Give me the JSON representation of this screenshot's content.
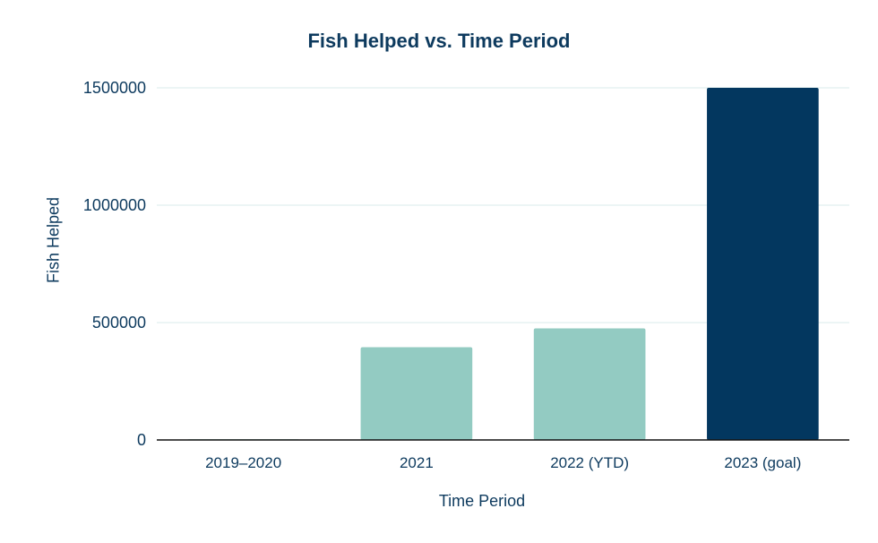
{
  "chart_data": {
    "type": "bar",
    "title": "Fish Helped vs. Time Period",
    "xlabel": "Time Period",
    "ylabel": "Fish Helped",
    "categories": [
      "2019–2020",
      "2021",
      "2022 (YTD)",
      "2023 (goal)"
    ],
    "values": [
      3000,
      395000,
      475000,
      1500000
    ],
    "bar_colors": [
      "#93cbc2",
      "#93cbc2",
      "#93cbc2",
      "#03375f"
    ],
    "ylim": [
      0,
      1500000
    ],
    "yticks": [
      0,
      500000,
      1000000,
      1500000
    ],
    "grid": true,
    "legend": "none"
  },
  "colors": {
    "title": "#0d3a5e",
    "axis_text": "#0d3a5e",
    "gridline": "#e6f2f2",
    "baseline": "#111111"
  }
}
